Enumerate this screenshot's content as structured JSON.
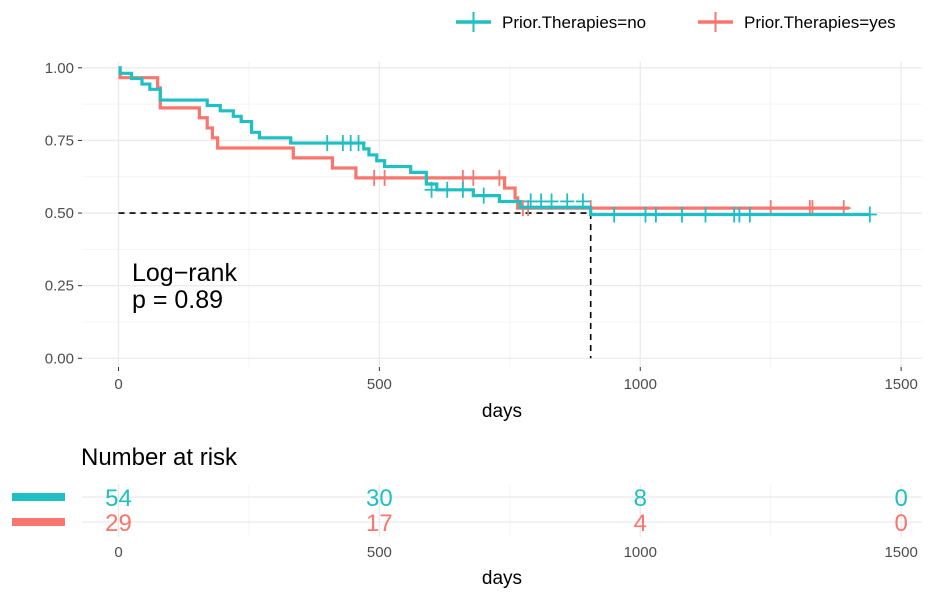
{
  "chart_data": [
    {
      "type": "line",
      "subtype": "kaplan-meier",
      "title": "",
      "xlabel": "days",
      "ylabel": "",
      "xlim": [
        -70,
        1540
      ],
      "ylim": [
        -0.03,
        1.02
      ],
      "x_ticks": [
        0,
        500,
        1000,
        1500
      ],
      "y_ticks": [
        0.0,
        0.25,
        0.5,
        0.75,
        1.0
      ],
      "x_tick_labels": [
        "0",
        "500",
        "1000",
        "1500"
      ],
      "y_tick_labels": [
        "0.00",
        "0.25",
        "0.50",
        "0.75",
        "1.00"
      ],
      "grid": true,
      "legend": {
        "position": "top",
        "entries": [
          "Prior.Therapies=no",
          "Prior.Therapies=yes"
        ]
      },
      "annotation": [
        "Log−rank",
        "p = 0.89"
      ],
      "median_line": {
        "y": 0.5,
        "x": 905
      },
      "series": [
        {
          "name": "Prior.Therapies=no",
          "color": "#1FBFC3",
          "steps": [
            [
              0,
              1.0
            ],
            [
              3,
              0.981
            ],
            [
              25,
              0.963
            ],
            [
              45,
              0.944
            ],
            [
              60,
              0.926
            ],
            [
              80,
              0.889
            ],
            [
              170,
              0.87
            ],
            [
              195,
              0.852
            ],
            [
              220,
              0.833
            ],
            [
              235,
              0.815
            ],
            [
              255,
              0.778
            ],
            [
              270,
              0.759
            ],
            [
              330,
              0.741
            ],
            [
              400,
              0.741
            ],
            [
              470,
              0.721
            ],
            [
              480,
              0.7
            ],
            [
              495,
              0.68
            ],
            [
              510,
              0.66
            ],
            [
              560,
              0.64
            ],
            [
              590,
              0.6
            ],
            [
              610,
              0.58
            ],
            [
              680,
              0.56
            ],
            [
              730,
              0.54
            ],
            [
              770,
              0.52
            ],
            [
              905,
              0.495
            ],
            [
              1440,
              0.495
            ]
          ],
          "censor_times": [
            [
              400,
              0.741
            ],
            [
              430,
              0.741
            ],
            [
              445,
              0.741
            ],
            [
              460,
              0.741
            ],
            [
              600,
              0.58
            ],
            [
              630,
              0.58
            ],
            [
              660,
              0.58
            ],
            [
              700,
              0.56
            ],
            [
              790,
              0.54
            ],
            [
              810,
              0.54
            ],
            [
              830,
              0.54
            ],
            [
              860,
              0.54
            ],
            [
              890,
              0.54
            ],
            [
              950,
              0.495
            ],
            [
              1010,
              0.495
            ],
            [
              1030,
              0.495
            ],
            [
              1080,
              0.495
            ],
            [
              1125,
              0.495
            ],
            [
              1180,
              0.495
            ],
            [
              1190,
              0.495
            ],
            [
              1210,
              0.495
            ],
            [
              1440,
              0.495
            ]
          ]
        },
        {
          "name": "Prior.Therapies=yes",
          "color": "#F8766D",
          "steps": [
            [
              0,
              1.0
            ],
            [
              3,
              0.966
            ],
            [
              75,
              0.931
            ],
            [
              80,
              0.862
            ],
            [
              155,
              0.828
            ],
            [
              170,
              0.793
            ],
            [
              180,
              0.759
            ],
            [
              190,
              0.724
            ],
            [
              335,
              0.69
            ],
            [
              410,
              0.655
            ],
            [
              455,
              0.621
            ],
            [
              665,
              0.621
            ],
            [
              740,
              0.586
            ],
            [
              760,
              0.552
            ],
            [
              765,
              0.517
            ],
            [
              1400,
              0.517
            ]
          ],
          "censor_times": [
            [
              490,
              0.621
            ],
            [
              510,
              0.621
            ],
            [
              660,
              0.621
            ],
            [
              680,
              0.621
            ],
            [
              730,
              0.621
            ],
            [
              775,
              0.517
            ],
            [
              785,
              0.517
            ],
            [
              905,
              0.517
            ],
            [
              1250,
              0.517
            ],
            [
              1325,
              0.517
            ],
            [
              1330,
              0.517
            ],
            [
              1390,
              0.517
            ]
          ]
        }
      ]
    },
    {
      "type": "table",
      "title": "Number at risk",
      "xlabel": "days",
      "x_ticks": [
        0,
        500,
        1000,
        1500
      ],
      "x_tick_labels": [
        "0",
        "500",
        "1000",
        "1500"
      ],
      "rows": [
        {
          "name": "Prior.Therapies=no",
          "color": "#1FBFC3",
          "values": [
            "54",
            "30",
            "8",
            "0"
          ]
        },
        {
          "name": "Prior.Therapies=yes",
          "color": "#F8766D",
          "values": [
            "29",
            "17",
            "4",
            "0"
          ]
        }
      ]
    }
  ]
}
